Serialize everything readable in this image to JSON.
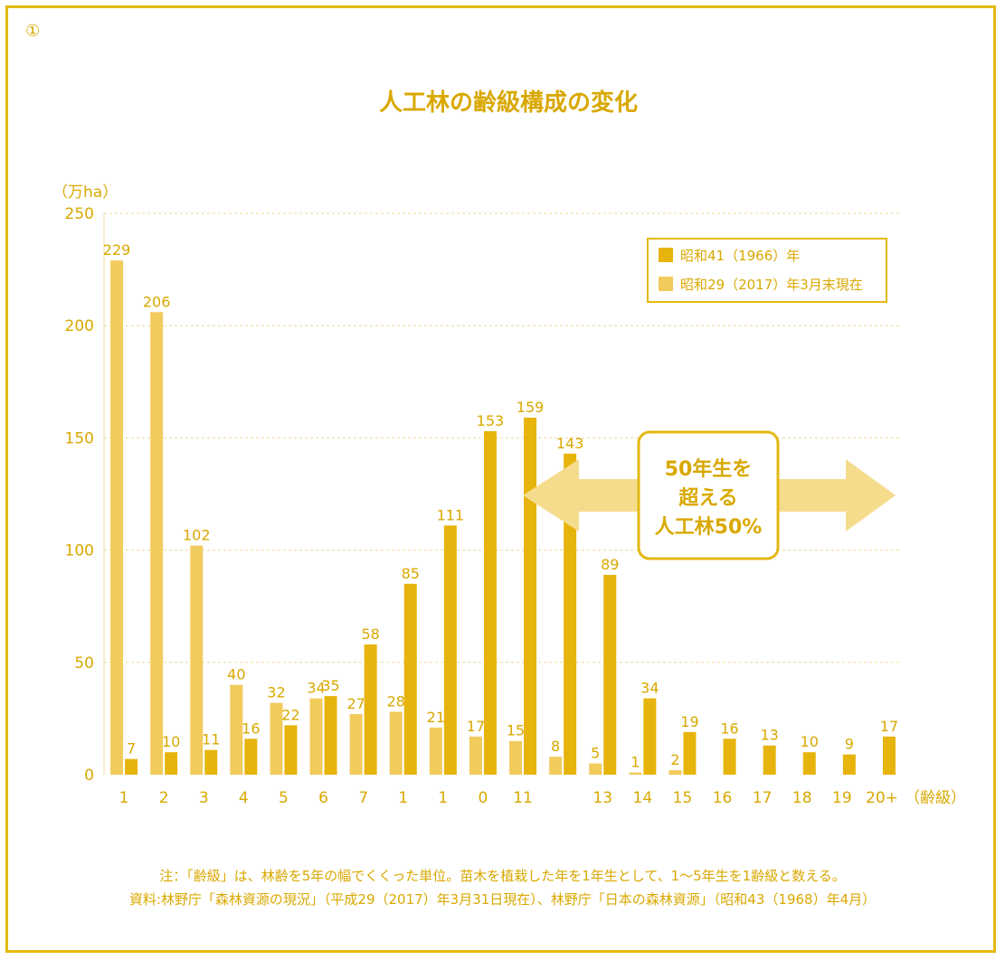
{
  "figure_number": "①",
  "chart_data": {
    "type": "bar",
    "title": "人工林の齢級構成の変化",
    "ylabel": "（万ha）",
    "xlabel": "（齢級）",
    "ylim": [
      0,
      250
    ],
    "yticks": [
      0,
      50,
      100,
      150,
      200,
      250
    ],
    "grid": true,
    "legend_position": "top-right",
    "categories": [
      "1",
      "2",
      "3",
      "4",
      "5",
      "6",
      "7",
      "1",
      "1",
      "0",
      "11",
      "",
      "13",
      "14",
      "15",
      "16",
      "17",
      "18",
      "19",
      "20+"
    ],
    "series": [
      {
        "name": "昭和29（2017）年3月末現在",
        "color": "#f2cb5d",
        "values": [
          229,
          206,
          102,
          40,
          32,
          34,
          27,
          28,
          21,
          17,
          15,
          8,
          5,
          1,
          2,
          null,
          null,
          null,
          null,
          null
        ]
      },
      {
        "name": "昭和41（1966）年",
        "color": "#e6b40c",
        "values": [
          7,
          10,
          11,
          16,
          22,
          35,
          58,
          85,
          111,
          153,
          159,
          143,
          89,
          34,
          19,
          16,
          13,
          10,
          9,
          17
        ]
      }
    ],
    "legend_order": [
      1,
      0
    ],
    "annotation": {
      "lines": [
        "50年生を",
        "超える",
        "人工林50%"
      ]
    }
  },
  "notes": [
    "注：「齢級」は、林齢を5年の幅でくくった単位。苗木を植栽した年を1年生として、1～5年生を1齢級と数える。",
    "資料:林野庁「森林資源の現況」（平成29（2017）年3月31日現在）、林野庁「日本の森林資源」（昭和43（1968）年4月）"
  ],
  "colors": {
    "frame": "#e3b913",
    "text": "#d9a800",
    "grid": "#ecd89a"
  }
}
